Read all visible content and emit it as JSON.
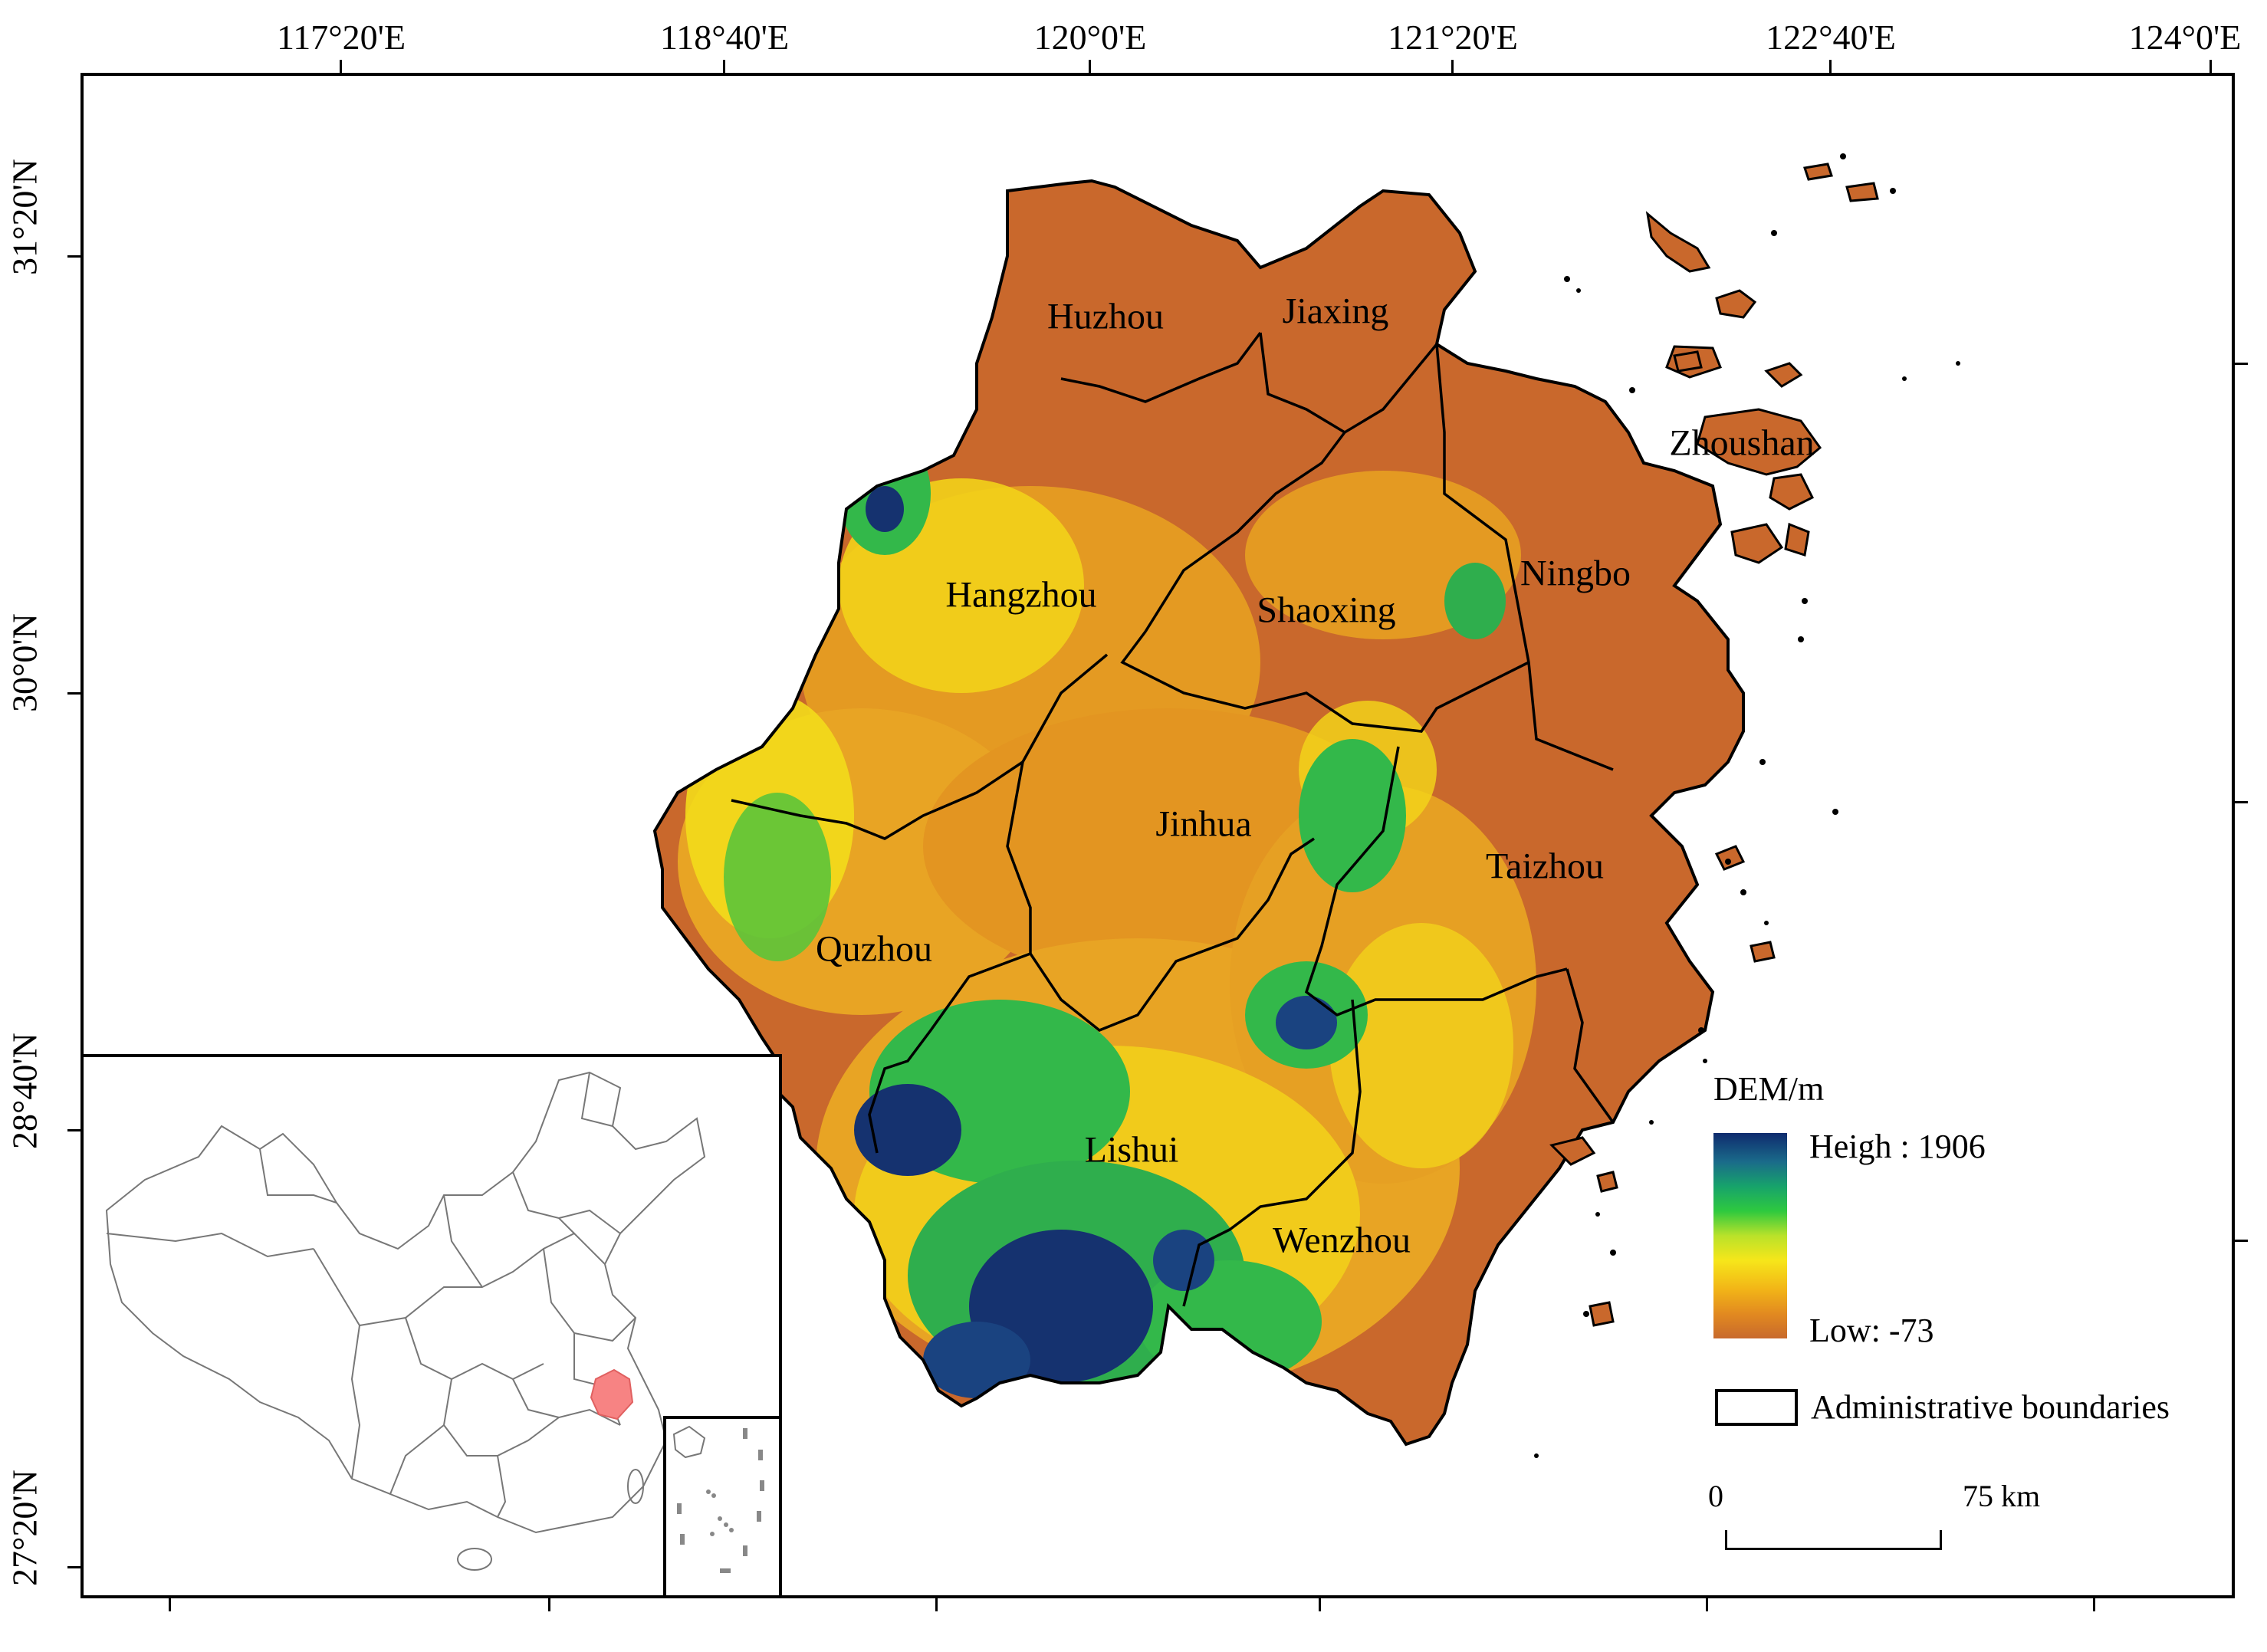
{
  "coordinates": {
    "longitudes": [
      "117°20'E",
      "118°40'E",
      "120°0'E",
      "121°20'E",
      "122°40'E",
      "124°0'E"
    ],
    "latitudes": [
      "31°20'N",
      "30°0'N",
      "28°40'N",
      "27°20'N"
    ]
  },
  "cities": [
    "Huzhou",
    "Jiaxing",
    "Zhoushan",
    "Hangzhou",
    "Shaoxing",
    "Ningbo",
    "Jinhua",
    "Taizhou",
    "Quzhou",
    "Lishui",
    "Wenzhou"
  ],
  "legend": {
    "title": "DEM/m",
    "high_label": "Heigh : 1906",
    "low_label": "Low: -73",
    "boundary_label": "Administrative boundaries",
    "ramp_colors": [
      "#0f2b6e",
      "#1a6b8a",
      "#17a36b",
      "#2ec93f",
      "#b9e22a",
      "#f6e61a",
      "#f2b517",
      "#e28a20",
      "#c86a2c"
    ]
  },
  "scale_bar": {
    "zero_label": "0",
    "max_label": "75 km"
  },
  "colors": {
    "lowland": "#c9682c",
    "hill": "#e9a31f",
    "mid": "#f2d21a",
    "green": "#33b84a",
    "peak": "#15326f",
    "highlight_province": "#f78383",
    "boundary": "#000000"
  }
}
